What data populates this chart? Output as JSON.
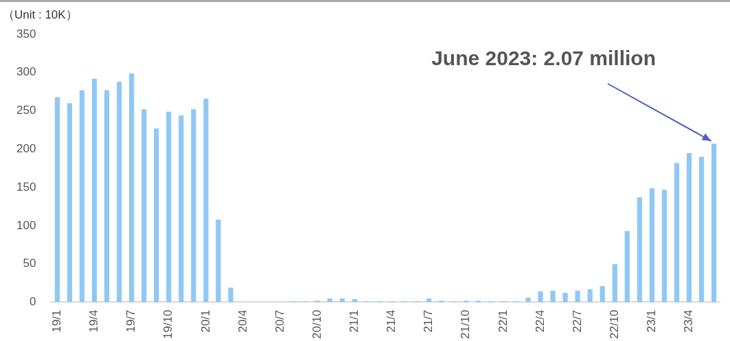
{
  "chart_data": {
    "type": "bar",
    "ylabel": "（Unit : 10K）",
    "annotations": [
      "June 2023: 2.07 million"
    ],
    "categories": [
      "19/1",
      null,
      null,
      "19/4",
      null,
      null,
      "19/7",
      null,
      null,
      "19/10",
      null,
      null,
      "20/1",
      null,
      null,
      "20/4",
      null,
      null,
      "20/7",
      null,
      null,
      "20/10",
      null,
      null,
      "21/1",
      null,
      null,
      "21/4",
      null,
      null,
      "21/7",
      null,
      null,
      "21/10",
      null,
      null,
      "22/1",
      null,
      null,
      "22/4",
      null,
      null,
      "22/7",
      null,
      null,
      "22/10",
      null,
      null,
      "23/1",
      null,
      null,
      "23/4",
      null,
      null
    ],
    "values": [
      268,
      260,
      277,
      292,
      277,
      288,
      299,
      252,
      227,
      249,
      244,
      252,
      266,
      108,
      19,
      0,
      0,
      0,
      0,
      1,
      1,
      2,
      5,
      5,
      4,
      1,
      1,
      1,
      1,
      1,
      5,
      2,
      1,
      2,
      2,
      1,
      1,
      1,
      6,
      14,
      15,
      12,
      15,
      17,
      21,
      50,
      93,
      137,
      149,
      147,
      182,
      195,
      190,
      207
    ],
    "color": "#8fc8f5",
    "ylim": [
      0,
      350
    ],
    "yticks": [
      0,
      50,
      100,
      150,
      200,
      250,
      300,
      350
    ],
    "grid": false,
    "legend": false
  }
}
